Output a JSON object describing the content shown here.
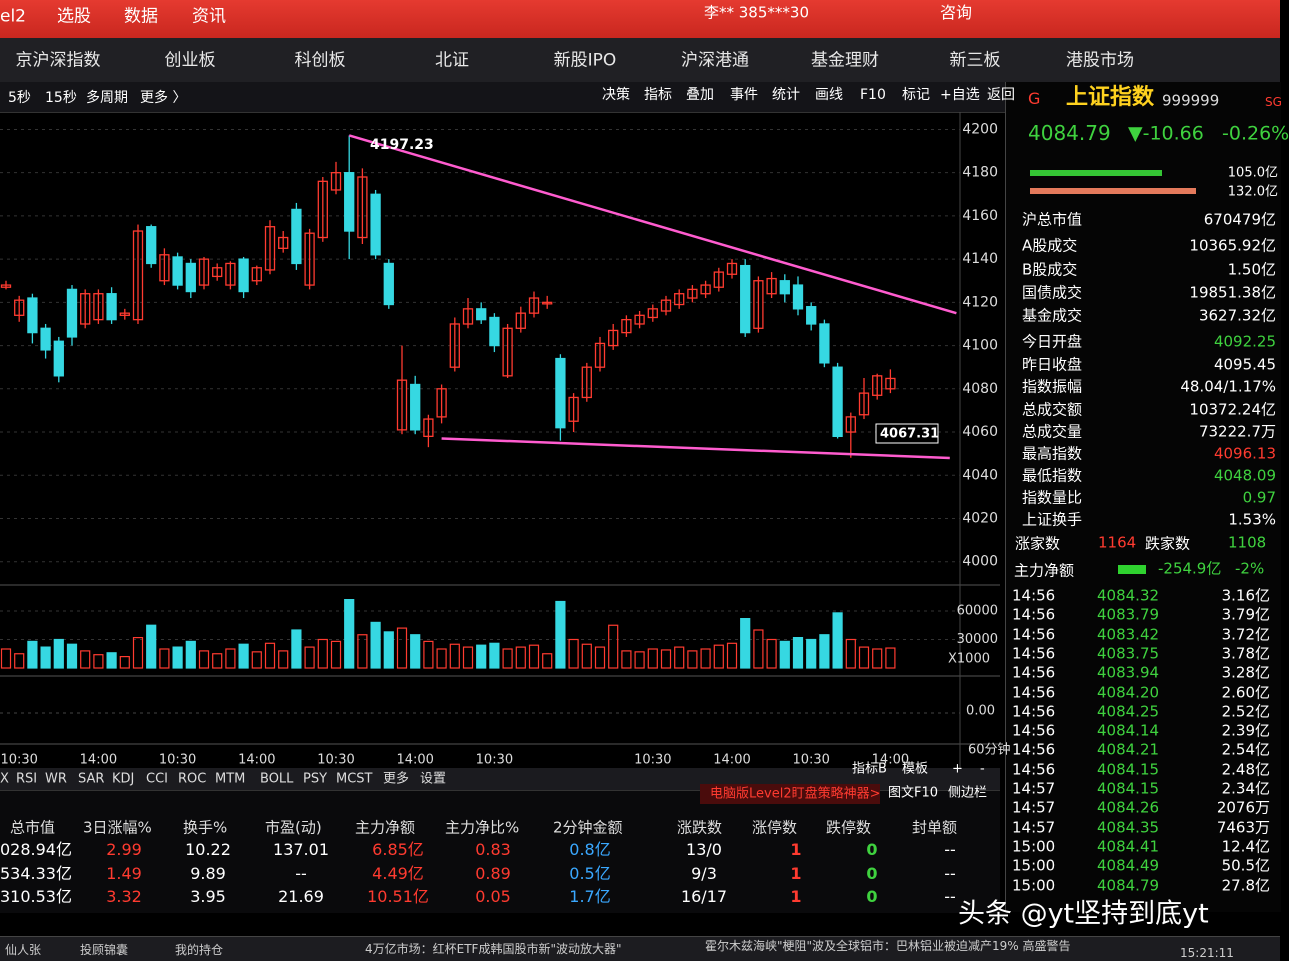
{
  "top_bar": {
    "menu": [
      "el2",
      "选股",
      "数据",
      "资讯"
    ],
    "user": "李** 385***30",
    "consult": "咨询"
  },
  "nav_tabs": [
    "京沪深指数",
    "创业板",
    "科创板",
    "北证",
    "新股IPO",
    "沪深港通",
    "基金理财",
    "新三板",
    "港股市场"
  ],
  "toolbar": {
    "periods": [
      "5秒",
      "15秒",
      "多周期",
      "更多 〉"
    ],
    "tools": [
      "决策",
      "指标",
      "叠加",
      "事件",
      "统计",
      "画线",
      "F10",
      "标记",
      "+自选",
      "返回"
    ]
  },
  "chart_data": {
    "type": "candlestick",
    "ohlc": [
      [
        4127,
        4130,
        4126,
        4128
      ],
      [
        4114,
        4123,
        4111,
        4121
      ],
      [
        4122,
        4124,
        4101,
        4106
      ],
      [
        4108,
        4110,
        4094,
        4098
      ],
      [
        4102,
        4104,
        4083,
        4086
      ],
      [
        4126,
        4128,
        4100,
        4104
      ],
      [
        4110,
        4126,
        4108,
        4124
      ],
      [
        4112,
        4126,
        4110,
        4124
      ],
      [
        4124,
        4127,
        4110,
        4112
      ],
      [
        4114,
        4117,
        4112,
        4115
      ],
      [
        4112,
        4156,
        4110,
        4153
      ],
      [
        4155,
        4156,
        4136,
        4138
      ],
      [
        4130,
        4145,
        4128,
        4142
      ],
      [
        4141,
        4143,
        4126,
        4128
      ],
      [
        4138,
        4140,
        4122,
        4125
      ],
      [
        4128,
        4141,
        4126,
        4140
      ],
      [
        4132,
        4138,
        4130,
        4136
      ],
      [
        4128,
        4139,
        4126,
        4138
      ],
      [
        4140,
        4141,
        4122,
        4125
      ],
      [
        4130,
        4137,
        4128,
        4136
      ],
      [
        4135,
        4158,
        4133,
        4155
      ],
      [
        4145,
        4153,
        4143,
        4150
      ],
      [
        4163,
        4166,
        4135,
        4138
      ],
      [
        4128,
        4154,
        4126,
        4152
      ],
      [
        4150,
        4178,
        4148,
        4176
      ],
      [
        4172,
        4185,
        4170,
        4180
      ],
      [
        4180,
        4197.23,
        4140,
        4153
      ],
      [
        4150,
        4182,
        4147,
        4178
      ],
      [
        4170,
        4172,
        4140,
        4142
      ],
      [
        4138,
        4140,
        4117,
        4119
      ],
      [
        4061,
        4100,
        4059,
        4084
      ],
      [
        4082,
        4086,
        4059,
        4061
      ],
      [
        4058,
        4068,
        4053,
        4066
      ],
      [
        4067,
        4082,
        4064,
        4080
      ],
      [
        4090,
        4113,
        4088,
        4110
      ],
      [
        4110,
        4122,
        4108,
        4117
      ],
      [
        4117,
        4120,
        4110,
        4112
      ],
      [
        4113,
        4115,
        4097,
        4100
      ],
      [
        4086,
        4110,
        4085,
        4108
      ],
      [
        4108,
        4118,
        4106,
        4115
      ],
      [
        4115,
        4125,
        4113,
        4122
      ],
      [
        4120,
        4123,
        4117,
        4120
      ],
      [
        4094,
        4096,
        4056,
        4062
      ],
      [
        4065,
        4078,
        4060,
        4076
      ],
      [
        4076,
        4092,
        4074,
        4090
      ],
      [
        4090,
        4104,
        4088,
        4101
      ],
      [
        4100,
        4110,
        4098,
        4107
      ],
      [
        4106,
        4114,
        4104,
        4112
      ],
      [
        4110,
        4116,
        4108,
        4114
      ],
      [
        4113,
        4119,
        4111,
        4117
      ],
      [
        4116,
        4123,
        4114,
        4121
      ],
      [
        4119,
        4126,
        4117,
        4124
      ],
      [
        4122,
        4128,
        4120,
        4126
      ],
      [
        4124,
        4130,
        4122,
        4128
      ],
      [
        4127,
        4136,
        4125,
        4134
      ],
      [
        4133,
        4140,
        4131,
        4138
      ],
      [
        4137,
        4140,
        4104,
        4106
      ],
      [
        4108,
        4132,
        4106,
        4130
      ],
      [
        4124,
        4134,
        4122,
        4131
      ],
      [
        4130,
        4133,
        4120,
        4124
      ],
      [
        4128,
        4132,
        4114,
        4117
      ],
      [
        4118,
        4120,
        4107,
        4110
      ],
      [
        4110,
        4112,
        4090,
        4092
      ],
      [
        4090,
        4092,
        4057,
        4058
      ],
      [
        4060,
        4069,
        4048.09,
        4067
      ],
      [
        4068,
        4085,
        4066,
        4078
      ],
      [
        4077,
        4087,
        4075,
        4086
      ],
      [
        4080,
        4089,
        4078,
        4084.79
      ]
    ],
    "categories": [
      null,
      "10:30",
      null,
      null,
      null,
      null,
      null,
      "14:00",
      null,
      null,
      null,
      null,
      null,
      "10:30",
      null,
      null,
      null,
      null,
      null,
      "14:00",
      null,
      null,
      null,
      null,
      null,
      "10:30",
      null,
      null,
      null,
      null,
      null,
      "14:00",
      null,
      null,
      null,
      null,
      null,
      "10:30",
      null,
      null,
      null,
      null,
      null,
      null,
      null,
      null,
      null,
      null,
      null,
      "10:30",
      null,
      null,
      null,
      null,
      null,
      "14:00",
      null,
      null,
      null,
      null,
      null,
      "10:30",
      null,
      null,
      null,
      null,
      null,
      "14:00"
    ],
    "period_label": "60分钟",
    "ylim": [
      3992,
      4209
    ],
    "yticks": [
      4000,
      4020,
      4040,
      4060,
      4080,
      4100,
      4120,
      4140,
      4160,
      4180,
      4200
    ],
    "grid": true,
    "up_color": "#ff3b30",
    "down_color": "#36d8e2",
    "annotations": [
      "4197.23",
      "4067.31"
    ],
    "trendlines": {
      "color": "#ff5ccf",
      "lines": [
        [
          [
            26,
            4197.23
          ],
          [
            72,
            4115
          ]
        ],
        [
          [
            33,
            4057
          ],
          [
            71.5,
            4048
          ]
        ]
      ]
    },
    "volume": {
      "values": [
        20000,
        15000,
        28000,
        22000,
        30000,
        25000,
        18000,
        14000,
        16000,
        12000,
        32000,
        45000,
        20000,
        22000,
        28000,
        18000,
        15000,
        20000,
        25000,
        17000,
        26000,
        18000,
        40000,
        22000,
        30000,
        28000,
        72000,
        35000,
        48000,
        38000,
        42000,
        35000,
        28000,
        20000,
        25000,
        22000,
        24000,
        26000,
        20000,
        22000,
        24000,
        15000,
        70000,
        30000,
        25000,
        22000,
        45000,
        18000,
        17000,
        20000,
        19000,
        22000,
        18000,
        20000,
        24000,
        26000,
        52000,
        40000,
        30000,
        28000,
        32000,
        30000,
        35000,
        58000,
        30000,
        22000,
        20000,
        21000
      ],
      "ylim": [
        0,
        80000
      ],
      "yticks": [
        30000,
        60000
      ],
      "unit": "X1000"
    },
    "macd": {
      "yticks": [
        {
          "value": 0,
          "label": "0.00"
        }
      ]
    }
  },
  "chart_controls": [
    "指标B",
    "模板",
    "+",
    "-"
  ],
  "indicator_tabs": [
    "X",
    "RSI",
    "WR",
    "SAR",
    "KDJ",
    "CCI",
    "ROC",
    "MTM",
    "BOLL",
    "PSY",
    "MCST",
    "更多",
    "设置"
  ],
  "quote": {
    "flag": "G",
    "name": "上证指数",
    "code": "999999",
    "tag": "SG",
    "price": "4084.79",
    "change": "▼-10.66",
    "change_pct": "-0.26%",
    "flow_in": "105.0亿",
    "flow_out": "132.0亿",
    "stats": [
      {
        "label": "沪总市值",
        "value": "670479亿",
        "color": "#ffffff"
      },
      {
        "label": "A股成交",
        "value": "10365.92亿",
        "color": "#ffffff"
      },
      {
        "label": "B股成交",
        "value": "1.50亿",
        "color": "#ffffff"
      },
      {
        "label": "国债成交",
        "value": "19851.38亿",
        "color": "#ffffff"
      },
      {
        "label": "基金成交",
        "value": "3627.32亿",
        "color": "#ffffff"
      },
      {
        "label": "今日开盘",
        "value": "4092.25",
        "color": "#3fd23f"
      },
      {
        "label": "昨日收盘",
        "value": "4095.45",
        "color": "#ffffff"
      },
      {
        "label": "指数振幅",
        "value": "48.04/1.17%",
        "color": "#ffffff"
      },
      {
        "label": "总成交额",
        "value": "10372.24亿",
        "color": "#ffffff"
      },
      {
        "label": "总成交量",
        "value": "73222.7万",
        "color": "#ffffff"
      },
      {
        "label": "最高指数",
        "value": "4096.13",
        "color": "#ff3b30"
      },
      {
        "label": "最低指数",
        "value": "4048.09",
        "color": "#3fd23f"
      },
      {
        "label": "指数量比",
        "value": "0.97",
        "color": "#3fd23f"
      },
      {
        "label": "上证换手",
        "value": "1.53%",
        "color": "#ffffff"
      }
    ],
    "advance_label": "涨家数",
    "advance": "1164",
    "decline_label": "跌家数",
    "decline": "1108",
    "net_label": "主力净额",
    "net": "-254.9亿",
    "net_pct": "-2%"
  },
  "trades": [
    [
      "14:56",
      "4084.32",
      "3.16亿"
    ],
    [
      "14:56",
      "4083.79",
      "3.79亿"
    ],
    [
      "14:56",
      "4083.42",
      "3.72亿"
    ],
    [
      "14:56",
      "4083.75",
      "3.78亿"
    ],
    [
      "14:56",
      "4083.94",
      "3.28亿"
    ],
    [
      "14:56",
      "4084.20",
      "2.60亿"
    ],
    [
      "14:56",
      "4084.25",
      "2.52亿"
    ],
    [
      "14:56",
      "4084.14",
      "2.39亿"
    ],
    [
      "14:56",
      "4084.21",
      "2.54亿"
    ],
    [
      "14:56",
      "4084.15",
      "2.48亿"
    ],
    [
      "14:57",
      "4084.15",
      "2.34亿"
    ],
    [
      "14:57",
      "4084.26",
      "2076万"
    ],
    [
      "14:57",
      "4084.35",
      "7463万"
    ],
    [
      "15:00",
      "4084.41",
      "12.4亿"
    ],
    [
      "15:00",
      "4084.49",
      "50.5亿"
    ],
    [
      "15:00",
      "4084.79",
      "27.8亿"
    ]
  ],
  "bottom_table": {
    "promo": "电脑版Level2盯盘策略神器>",
    "buttons": [
      "图文F10",
      "侧边栏"
    ],
    "headers": [
      "总市值",
      "3日涨幅%",
      "换手%",
      "市盈(动)",
      "主力净额",
      "主力净比%",
      "2分钟金额",
      "涨跌数",
      "涨停数",
      "跌停数",
      "封单额"
    ],
    "rows": [
      [
        "028.94亿",
        "2.99",
        "10.22",
        "137.01",
        "6.85亿",
        "0.83",
        "0.8亿",
        "13/0",
        "1",
        "0",
        "--"
      ],
      [
        "534.33亿",
        "1.49",
        "9.89",
        "--",
        "4.49亿",
        "0.89",
        "0.5亿",
        "9/3",
        "1",
        "0",
        "--"
      ],
      [
        "310.53亿",
        "3.32",
        "3.95",
        "21.69",
        "10.51亿",
        "0.05",
        "1.7亿",
        "16/17",
        "1",
        "0",
        "--"
      ]
    ],
    "column_colors": [
      "#ffffff",
      "#ff3b30",
      "#ffffff",
      "#ffffff",
      "#ff3b30",
      "#ff3b30",
      "#3aa8ff",
      "#ffffff",
      "#ff3b30",
      "#3fd23f",
      "#ffffff"
    ]
  },
  "status_bar": {
    "items": [
      "仙人张",
      "投顾锦囊",
      "我的持仓"
    ],
    "news": [
      "4万亿市场：红杯ETF成韩国股市新\"波动放大器\"",
      "霍尔木兹海峡\"梗阻\"波及全球铝市：巴林铝业被迫减产19% 高盛警告"
    ],
    "time": "15:21:11"
  },
  "watermark": "头条 @yt坚持到底yt"
}
